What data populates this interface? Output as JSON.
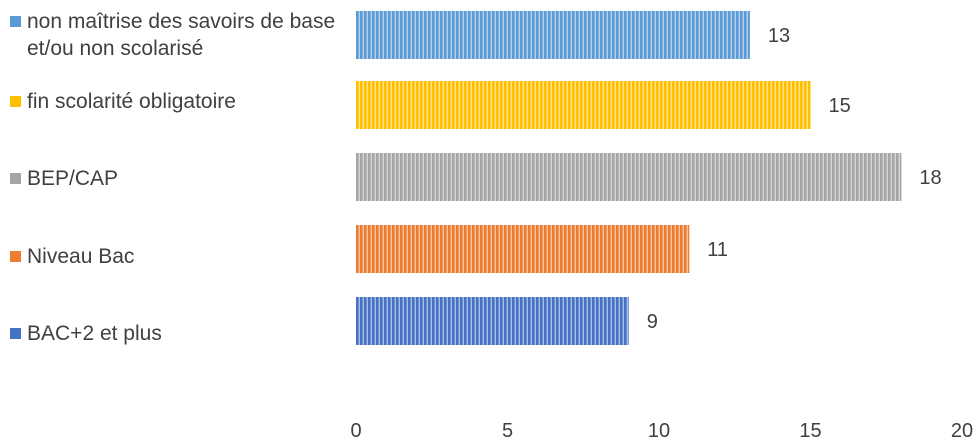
{
  "chart_data": {
    "type": "bar",
    "orientation": "horizontal",
    "categories": [
      "non maîtrise des savoirs de base et/ou non scolarisé",
      "fin scolarité obligatoire",
      "BEP/CAP",
      "Niveau Bac",
      "BAC+2 et plus"
    ],
    "values": [
      13,
      15,
      18,
      11,
      9
    ],
    "colors": [
      "#5b9bd5",
      "#ffc000",
      "#a5a5a5",
      "#ed7d31",
      "#4472c4"
    ],
    "xlim": [
      0,
      20
    ],
    "xticks": [
      0,
      5,
      10,
      15,
      20
    ],
    "grid": false,
    "legend_position": "left",
    "bar_pattern": "vertical-stripes",
    "data_labels": true
  },
  "legend": [
    {
      "label": "non maîtrise des savoirs de base et/ou non scolarisé",
      "color": "#5b9bd5"
    },
    {
      "label": "fin scolarité obligatoire",
      "color": "#ffc000"
    },
    {
      "label": "BEP/CAP",
      "color": "#a5a5a5"
    },
    {
      "label": "Niveau Bac",
      "color": "#ed7d31"
    },
    {
      "label": "BAC+2 et plus",
      "color": "#4472c4"
    }
  ]
}
